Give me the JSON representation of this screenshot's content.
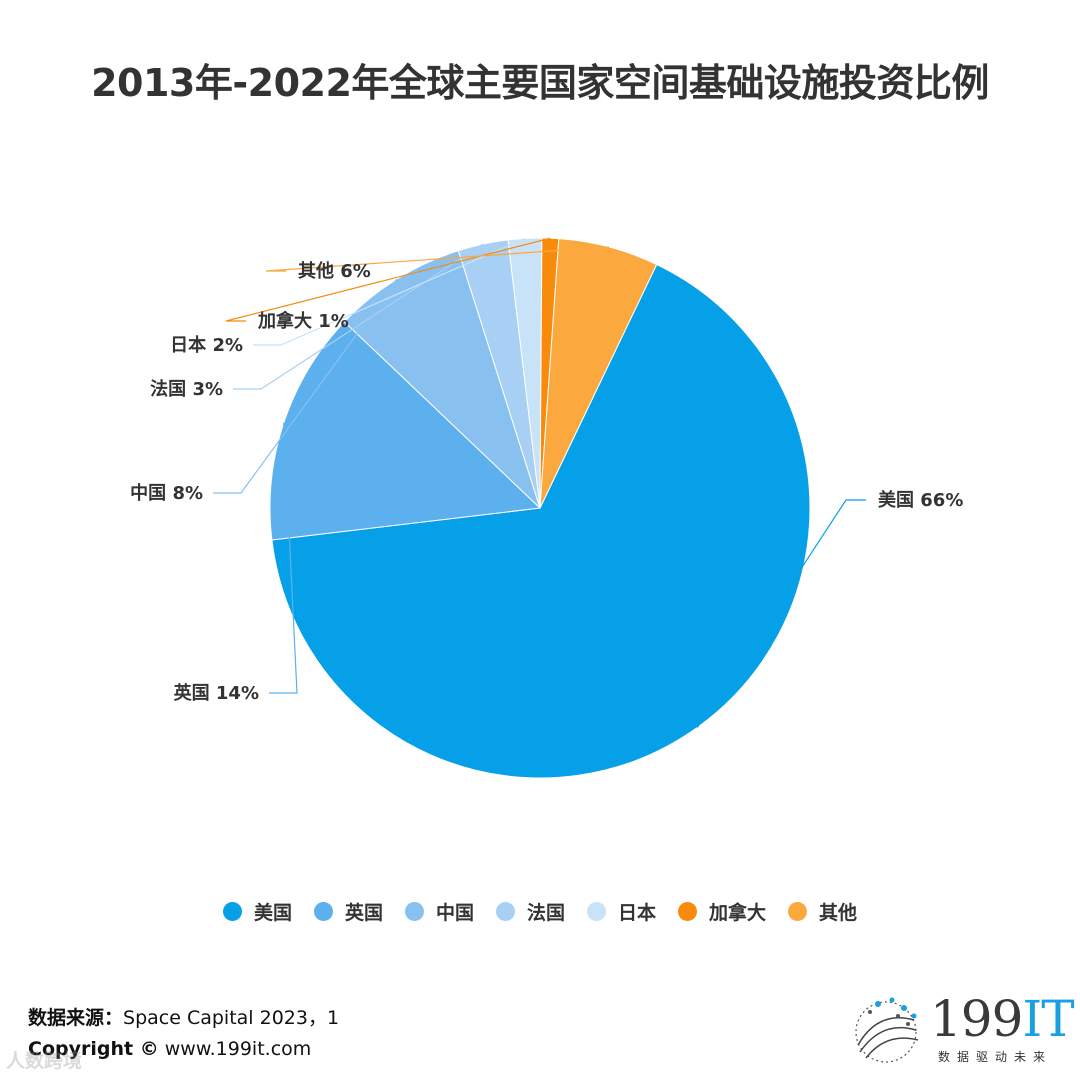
{
  "title": "2013年-2022年全球主要国家空间基础设施投资比例",
  "chart_data": {
    "type": "pie",
    "title": "2013年-2022年全球主要国家空间基础设施投资比例",
    "slices": [
      {
        "label": "美国",
        "value": 66,
        "value_label": "美国 66%",
        "color": "#06a0e8"
      },
      {
        "label": "英国",
        "value": 14,
        "value_label": "英国 14%",
        "color": "#5cb0ee"
      },
      {
        "label": "中国",
        "value": 8,
        "value_label": "中国 8%",
        "color": "#88c0f0"
      },
      {
        "label": "法国",
        "value": 3,
        "value_label": "法国 3%",
        "color": "#a8d0f4"
      },
      {
        "label": "日本",
        "value": 2,
        "value_label": "日本 2%",
        "color": "#c8e2f8"
      },
      {
        "label": "加拿大",
        "value": 1,
        "value_label": "加拿大 1%",
        "color": "#f88a0c"
      },
      {
        "label": "其他",
        "value": 6,
        "value_label": "其他 6%",
        "color": "#fba83e"
      }
    ],
    "legend_position": "bottom"
  },
  "footer": {
    "source_label": "数据来源：",
    "source_text": "Space Capital 2023，1",
    "copyright_label": "Copyright ©",
    "copyright_url": " www.199it.com"
  },
  "logo": {
    "brand_num": "199",
    "brand_it": "IT",
    "slogan": "数据驱动未来"
  },
  "watermark": "人数跨境"
}
